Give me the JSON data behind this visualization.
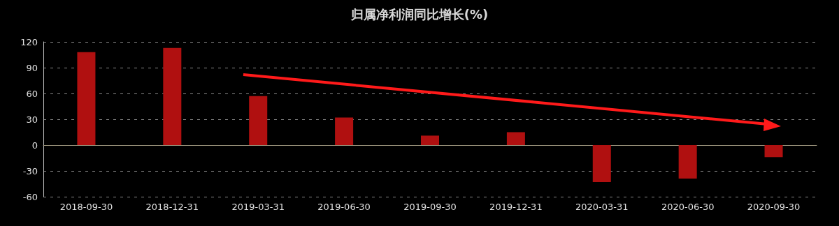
{
  "chart_data": {
    "type": "bar",
    "title": "归属净利润同比增长(%)",
    "categories": [
      "2018-09-30",
      "2018-12-31",
      "2019-03-31",
      "2019-06-30",
      "2019-09-30",
      "2019-12-31",
      "2020-03-31",
      "2020-06-30",
      "2020-09-30"
    ],
    "values": [
      108,
      113,
      57,
      32,
      11,
      15,
      -43,
      -39,
      -14
    ],
    "color": "#b01010",
    "ylim": [
      -60,
      120
    ],
    "yticks": [
      -60,
      -30,
      0,
      30,
      60,
      90,
      120
    ],
    "grid": "y"
  }
}
